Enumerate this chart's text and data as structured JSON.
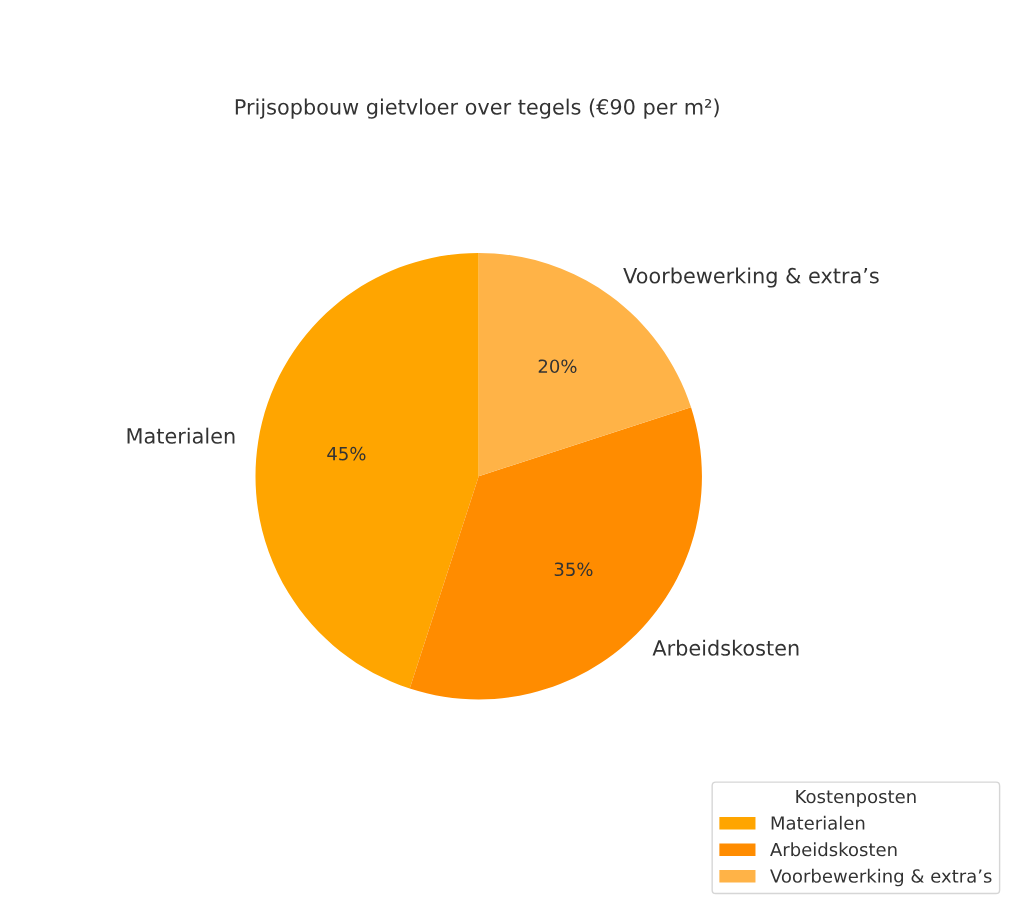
{
  "chart_data": {
    "type": "pie",
    "title": "Prijsopbouw gietvloer over tegels (€90 per m²)",
    "categories": [
      "Materialen",
      "Arbeidskosten",
      "Voorbewerking & extra’s"
    ],
    "values": [
      45,
      35,
      20
    ],
    "colors": [
      "#ffa500",
      "#ff8c00",
      "#ffb347"
    ],
    "value_labels": [
      "45%",
      "35%",
      "20%"
    ],
    "legend": "bottom right",
    "legend_title": "Kostenposten"
  }
}
